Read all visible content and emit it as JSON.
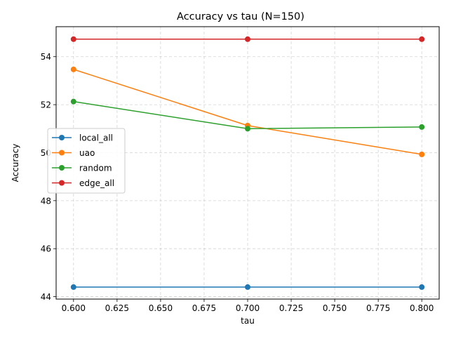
{
  "chart_data": {
    "type": "line",
    "title": "Accuracy vs tau (N=150)",
    "xlabel": "tau",
    "ylabel": "Accuracy",
    "x": [
      0.6,
      0.7,
      0.8
    ],
    "xlim": [
      0.59,
      0.81
    ],
    "ylim": [
      43.9,
      55.25
    ],
    "xticks": [
      "0.600",
      "0.625",
      "0.650",
      "0.675",
      "0.700",
      "0.725",
      "0.750",
      "0.775",
      "0.800"
    ],
    "yticks": [
      "44",
      "46",
      "48",
      "50",
      "52",
      "54"
    ],
    "grid": true,
    "legend_position": "center-left",
    "series": [
      {
        "name": "local_all",
        "color": "#1f77b4",
        "values": [
          44.4,
          44.4,
          44.4
        ]
      },
      {
        "name": "uao",
        "color": "#ff7f0e",
        "values": [
          53.47,
          51.13,
          49.93
        ]
      },
      {
        "name": "random",
        "color": "#2ca02c",
        "values": [
          52.13,
          51.0,
          51.07
        ]
      },
      {
        "name": "edge_all",
        "color": "#d62728",
        "values": [
          54.73,
          54.73,
          54.73
        ]
      }
    ]
  }
}
